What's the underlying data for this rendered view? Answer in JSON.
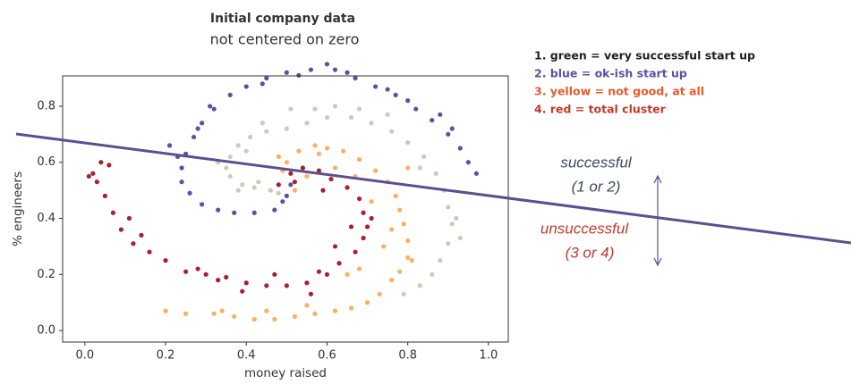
{
  "chart_data": {
    "type": "scatter",
    "title": "Initial company data",
    "subtitle": "not centered on zero",
    "x_label": "money raised",
    "y_label": "% engineers",
    "xlim": [
      -0.055,
      1.049
    ],
    "ylim": [
      -0.041,
      0.908
    ],
    "xticks": [
      {
        "value": 0,
        "label": "0.0"
      },
      0.2,
      0.4,
      0.6,
      0.8,
      {
        "value": 1,
        "label": "1.0"
      }
    ],
    "yticks": [
      {
        "value": 0,
        "label": "0.0"
      },
      0.2,
      0.4,
      0.6,
      0.8
    ],
    "series": [
      {
        "name": "1. green = very successful start up",
        "color": "#c9ccbb",
        "text_color": "#222222",
        "x": [
          0.46,
          0.42,
          0.39,
          0.36,
          0.35,
          0.36,
          0.38,
          0.41,
          0.45,
          0.5,
          0.55,
          0.6,
          0.66,
          0.71,
          0.76,
          0.8,
          0.84,
          0.87,
          0.89,
          0.9,
          0.91,
          0.9,
          0.88,
          0.86,
          0.83,
          0.79,
          0.44,
          0.51,
          0.57,
          0.68,
          0.75,
          0.4,
          0.48,
          0.43,
          0.92,
          0.93,
          0.83,
          0.62,
          0.33,
          0.38
        ],
        "values": [
          0.5,
          0.51,
          0.52,
          0.55,
          0.58,
          0.62,
          0.66,
          0.69,
          0.71,
          0.72,
          0.74,
          0.76,
          0.76,
          0.74,
          0.71,
          0.67,
          0.62,
          0.56,
          0.5,
          0.44,
          0.38,
          0.31,
          0.25,
          0.2,
          0.16,
          0.13,
          0.74,
          0.79,
          0.79,
          0.79,
          0.77,
          0.64,
          0.49,
          0.53,
          0.4,
          0.33,
          0.58,
          0.8,
          0.6,
          0.5
        ]
      },
      {
        "name": "2. blue = ok-ish start up",
        "color": "#5e4fa2",
        "text_color": "#5e4fa2",
        "x": [
          0.47,
          0.42,
          0.37,
          0.33,
          0.29,
          0.26,
          0.24,
          0.24,
          0.25,
          0.27,
          0.29,
          0.32,
          0.36,
          0.4,
          0.45,
          0.5,
          0.56,
          0.62,
          0.67,
          0.72,
          0.77,
          0.82,
          0.86,
          0.9,
          0.93,
          0.95,
          0.97,
          0.5,
          0.51,
          0.49,
          0.21,
          0.23,
          0.28,
          0.31,
          0.44,
          0.53,
          0.6,
          0.65,
          0.75,
          0.8,
          0.88,
          0.91
        ],
        "values": [
          0.43,
          0.42,
          0.42,
          0.43,
          0.45,
          0.49,
          0.53,
          0.58,
          0.63,
          0.69,
          0.74,
          0.79,
          0.84,
          0.87,
          0.9,
          0.92,
          0.93,
          0.93,
          0.9,
          0.87,
          0.84,
          0.79,
          0.75,
          0.7,
          0.65,
          0.6,
          0.56,
          0.48,
          0.52,
          0.46,
          0.66,
          0.62,
          0.72,
          0.8,
          0.88,
          0.91,
          0.95,
          0.92,
          0.86,
          0.82,
          0.77,
          0.72
        ]
      },
      {
        "name": "3. yellow = not good, at all",
        "color": "#fdae61",
        "text_color": "#e8592a",
        "x": [
          0.52,
          0.55,
          0.5,
          0.48,
          0.53,
          0.57,
          0.6,
          0.64,
          0.68,
          0.72,
          0.75,
          0.77,
          0.78,
          0.79,
          0.8,
          0.8,
          0.78,
          0.76,
          0.73,
          0.7,
          0.66,
          0.62,
          0.57,
          0.52,
          0.47,
          0.42,
          0.37,
          0.32,
          0.25,
          0.2,
          0.55,
          0.65,
          0.68,
          0.74,
          0.76,
          0.71,
          0.67,
          0.62,
          0.58,
          0.49,
          0.8,
          0.81,
          0.45,
          0.34
        ],
        "values": [
          0.5,
          0.55,
          0.6,
          0.62,
          0.64,
          0.66,
          0.65,
          0.64,
          0.61,
          0.57,
          0.53,
          0.48,
          0.43,
          0.38,
          0.32,
          0.26,
          0.21,
          0.18,
          0.13,
          0.1,
          0.08,
          0.07,
          0.06,
          0.05,
          0.04,
          0.04,
          0.05,
          0.06,
          0.06,
          0.07,
          0.09,
          0.2,
          0.22,
          0.3,
          0.36,
          0.46,
          0.55,
          0.58,
          0.63,
          0.57,
          0.58,
          0.25,
          0.07,
          0.07
        ]
      },
      {
        "name": "4. red = total cluster",
        "color": "#a8202e",
        "text_color": "#c0392b",
        "x": [
          0.48,
          0.51,
          0.54,
          0.58,
          0.61,
          0.65,
          0.68,
          0.69,
          0.7,
          0.69,
          0.67,
          0.63,
          0.6,
          0.55,
          0.5,
          0.45,
          0.4,
          0.35,
          0.3,
          0.25,
          0.2,
          0.16,
          0.12,
          0.09,
          0.07,
          0.05,
          0.03,
          0.02,
          0.01,
          0.04,
          0.06,
          0.11,
          0.14,
          0.33,
          0.39,
          0.58,
          0.62,
          0.66,
          0.59,
          0.47,
          0.56,
          0.52,
          0.71,
          0.28
        ],
        "values": [
          0.52,
          0.56,
          0.58,
          0.57,
          0.54,
          0.51,
          0.47,
          0.42,
          0.37,
          0.33,
          0.28,
          0.24,
          0.2,
          0.17,
          0.16,
          0.16,
          0.17,
          0.19,
          0.2,
          0.21,
          0.25,
          0.28,
          0.31,
          0.36,
          0.42,
          0.48,
          0.53,
          0.56,
          0.55,
          0.6,
          0.59,
          0.4,
          0.34,
          0.18,
          0.14,
          0.21,
          0.3,
          0.37,
          0.5,
          0.2,
          0.13,
          0.53,
          0.4,
          0.22
        ]
      }
    ],
    "annotations": {
      "successful": "successful",
      "successful_group": "(1 or 2)",
      "unsuccessful": "unsuccessful",
      "unsuccessful_group": "(3 or 4)"
    }
  }
}
